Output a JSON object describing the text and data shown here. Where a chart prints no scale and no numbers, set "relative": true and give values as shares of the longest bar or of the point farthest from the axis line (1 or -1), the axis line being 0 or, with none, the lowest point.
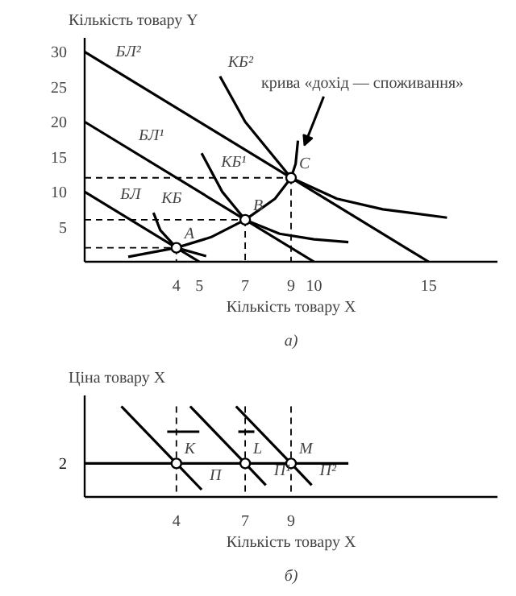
{
  "chart_data": [
    {
      "type": "line",
      "ylabel": "Кількість товару Y",
      "xlabel": "Кількість товару X",
      "subtitle": "а)",
      "xlim": [
        0,
        18
      ],
      "ylim": [
        0,
        32
      ],
      "xticks": [
        4,
        5,
        7,
        9,
        10,
        15
      ],
      "yticks": [
        5,
        10,
        15,
        20,
        25,
        30
      ],
      "grid": false,
      "series": [
        {
          "x": [
            0,
            15
          ],
          "values": [
            30,
            0
          ],
          "color": "#000000",
          "line_style": "solid"
        },
        {
          "x": [
            0,
            10
          ],
          "values": [
            20,
            0
          ],
          "color": "#000000",
          "line_style": "solid"
        },
        {
          "x": [
            0,
            5
          ],
          "values": [
            10,
            0
          ],
          "color": "#000000",
          "line_style": "solid"
        },
        {
          "x": [
            3.0,
            3.3,
            4,
            5.3
          ],
          "values": [
            7,
            4.5,
            2,
            0.8
          ],
          "color": "#000000",
          "line_style": "solid"
        },
        {
          "x": [
            5.1,
            6,
            7,
            8.5,
            10,
            11.5
          ],
          "values": [
            15.5,
            10,
            6,
            4,
            3.2,
            2.8
          ],
          "color": "#000000",
          "line_style": "solid"
        },
        {
          "x": [
            5.9,
            7,
            9,
            11,
            13,
            15.8
          ],
          "values": [
            26.5,
            20,
            12,
            9,
            7.5,
            6.3
          ],
          "color": "#000000",
          "line_style": "solid"
        },
        {
          "x": [
            1.9,
            4,
            5.5,
            7,
            8.3,
            9,
            9.2,
            9.3
          ],
          "values": [
            0.7,
            2,
            3.5,
            6,
            9,
            12,
            14,
            17.3
          ],
          "color": "#000000",
          "line_style": "solid"
        },
        {
          "x": [
            0,
            4
          ],
          "values": [
            2,
            2
          ],
          "color": "#000000",
          "line_style": "dashed"
        },
        {
          "x": [
            4,
            4
          ],
          "values": [
            2,
            0
          ],
          "color": "#000000",
          "line_style": "dashed"
        },
        {
          "x": [
            0,
            7
          ],
          "values": [
            6,
            6
          ],
          "color": "#000000",
          "line_style": "dashed"
        },
        {
          "x": [
            7,
            7
          ],
          "values": [
            6,
            0
          ],
          "color": "#000000",
          "line_style": "dashed"
        },
        {
          "x": [
            0,
            9
          ],
          "values": [
            12,
            12
          ],
          "color": "#000000",
          "line_style": "dashed"
        },
        {
          "x": [
            9,
            9
          ],
          "values": [
            12,
            0
          ],
          "color": "#000000",
          "line_style": "dashed"
        },
        {
          "type": "scatter",
          "x": [
            4,
            7,
            9
          ],
          "values": [
            2,
            6,
            12
          ],
          "color": "#000000",
          "marker": "circle"
        }
      ],
      "annotations": [
        {
          "text": "БЛ²",
          "x": 1,
          "y": 28
        },
        {
          "text": "КБ²",
          "x": 5.9,
          "y": 26.5
        },
        {
          "text": "БЛ¹",
          "x": 2,
          "y": 16
        },
        {
          "text": "КБ¹",
          "x": 5.6,
          "y": 12.2
        },
        {
          "text": "БЛ",
          "x": 1.2,
          "y": 7.6
        },
        {
          "text": "КБ",
          "x": 3.0,
          "y": 7
        },
        {
          "text": "A",
          "x": 4,
          "y": 2
        },
        {
          "text": "B",
          "x": 7,
          "y": 6
        },
        {
          "text": "C",
          "x": 9,
          "y": 12
        },
        {
          "text": "крива «дохід — споживання»",
          "x": 9.3,
          "y": 17.3
        }
      ]
    },
    {
      "type": "line",
      "relative": true,
      "ylabel": "Ціна товару X",
      "xlabel": "Кількість товару X",
      "subtitle": "б)",
      "xlim": [
        0,
        18
      ],
      "xticks": [
        4,
        7,
        9
      ],
      "grid": false,
      "series": [
        {
          "x": [
            0,
            11.5
          ],
          "values": [
            0.37,
            0.37
          ],
          "color": "#000000",
          "line_style": "solid"
        },
        {
          "x": [
            5.1,
            4,
            1.6
          ],
          "values": [
            0.08,
            0.37,
            1
          ],
          "color": "#000000",
          "line_style": "solid"
        },
        {
          "x": [
            7.9,
            7,
            4.6
          ],
          "values": [
            0.13,
            0.37,
            1
          ],
          "color": "#000000",
          "line_style": "solid"
        },
        {
          "x": [
            9.9,
            9,
            6.6
          ],
          "values": [
            0.13,
            0.37,
            1
          ],
          "color": "#000000",
          "line_style": "solid"
        },
        {
          "x": [
            4,
            4
          ],
          "values": [
            1,
            0
          ],
          "color": "#000000",
          "line_style": "dashed"
        },
        {
          "x": [
            7,
            7
          ],
          "values": [
            1,
            0
          ],
          "color": "#000000",
          "line_style": "dashed"
        },
        {
          "x": [
            9,
            9
          ],
          "values": [
            1,
            0
          ],
          "color": "#000000",
          "line_style": "dashed"
        },
        {
          "x": [
            3.6,
            5.0
          ],
          "values": [
            0.72,
            0.72
          ],
          "color": "#000000",
          "line_style": "solid"
        },
        {
          "x": [
            6.7,
            7.4
          ],
          "values": [
            0.72,
            0.72
          ],
          "color": "#000000",
          "line_style": "solid"
        },
        {
          "type": "scatter",
          "x": [
            4,
            7,
            9
          ],
          "values": [
            0.37,
            0.37,
            0.37
          ],
          "color": "#000000",
          "marker": "circle"
        }
      ],
      "annotations": [
        {
          "text": "2",
          "x": 0,
          "y": 0.37
        },
        {
          "text": "K",
          "x": 4,
          "y": 0.37
        },
        {
          "text": "L",
          "x": 7,
          "y": 0.37
        },
        {
          "text": "M",
          "x": 9,
          "y": 0.37
        },
        {
          "text": "П",
          "x": 5.1,
          "y": 0.08
        },
        {
          "text": "П¹",
          "x": 7.9,
          "y": 0.13
        },
        {
          "text": "П²",
          "x": 9.9,
          "y": 0.13
        }
      ]
    }
  ]
}
